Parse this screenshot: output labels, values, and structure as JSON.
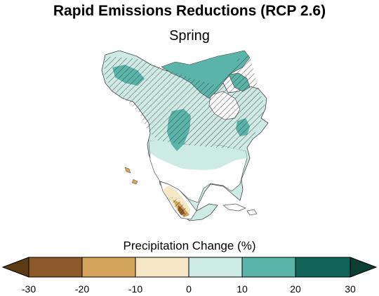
{
  "header": {
    "title": "Rapid Emissions Reductions (RCP 2.6)",
    "subtitle": "Spring"
  },
  "legend": {
    "title": "Precipitation Change (%)",
    "tick_labels": [
      "-30",
      "-20",
      "-10",
      "0",
      "10",
      "20",
      "30"
    ],
    "bins": [
      {
        "range": "< -30",
        "color": "#5a3a14"
      },
      {
        "range": "-30 to -20",
        "color": "#8c5a28"
      },
      {
        "range": "-20 to -10",
        "color": "#d4a35c"
      },
      {
        "range": "-10 to 0",
        "color": "#f6e8c6"
      },
      {
        "range": "0 to 10",
        "color": "#cdeae4"
      },
      {
        "range": "10 to 20",
        "color": "#5ab4a8"
      },
      {
        "range": "20 to 30",
        "color": "#106458"
      },
      {
        "range": "> 30",
        "color": "#0b3d33"
      }
    ]
  },
  "map": {
    "hatching_meaning": "hatched areas",
    "colors": {
      "ocean": "#ffffff",
      "no_change": "#f2f2f2",
      "small_increase": "#cdeae4",
      "moderate_increase": "#5ab4a8",
      "small_decrease": "#f6e8c6",
      "moderate_decrease": "#d4a35c",
      "large_decrease": "#8c5a28",
      "border": "#555555"
    }
  }
}
